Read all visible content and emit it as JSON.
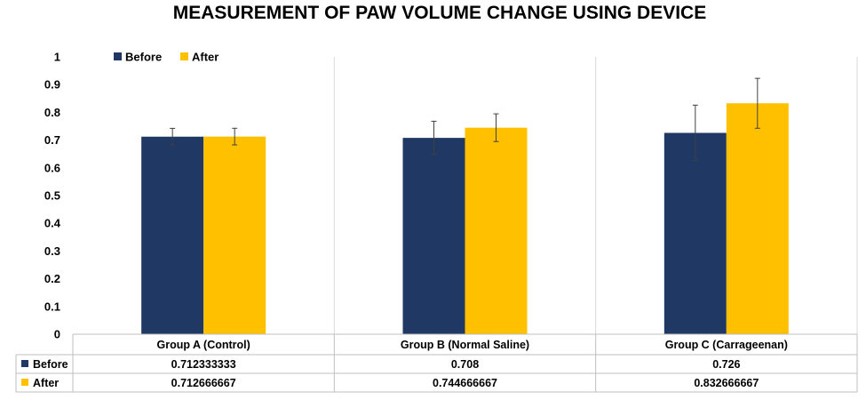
{
  "chart_data": {
    "type": "bar",
    "title": "MEASUREMENT OF PAW VOLUME CHANGE USING DEVICE",
    "xlabel": "",
    "ylabel": "",
    "ylim": [
      0,
      1
    ],
    "yticks": [
      "0",
      "0.1",
      "0.2",
      "0.3",
      "0.4",
      "0.5",
      "0.6",
      "0.7",
      "0.8",
      "0.9",
      "1"
    ],
    "categories": [
      "Group A (Control)",
      "Group B (Normal Saline)",
      "Group C (Carrageenan)"
    ],
    "series": [
      {
        "name": "Before",
        "color": "#1f3864",
        "values": [
          0.712333333,
          0.708,
          0.726
        ],
        "value_labels": [
          "0.712333333",
          "0.708",
          "0.726"
        ],
        "error": [
          0.03,
          0.06,
          0.1
        ]
      },
      {
        "name": "After",
        "color": "#ffc000",
        "values": [
          0.712666667,
          0.744666667,
          0.832666667
        ],
        "value_labels": [
          "0.712666667",
          "0.744666667",
          "0.832666667"
        ],
        "error": [
          0.03,
          0.05,
          0.09
        ]
      }
    ],
    "legend": "top-left",
    "grid": {
      "vertical_separators": true,
      "horizontal": false
    },
    "data_table": true
  }
}
